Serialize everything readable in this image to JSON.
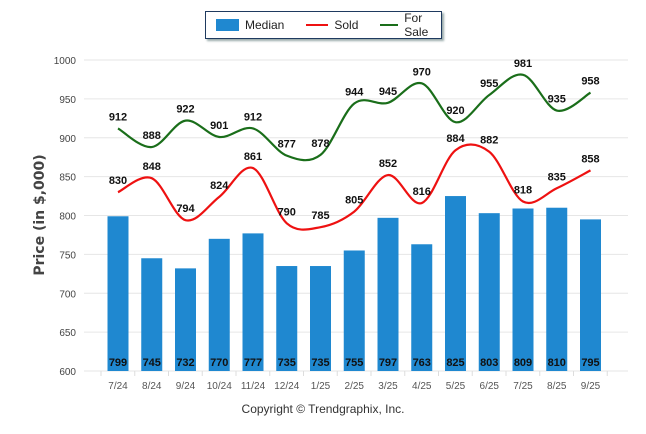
{
  "chart_data": {
    "type": "bar+line",
    "title": "",
    "xlabel": "",
    "ylabel": "Price (in $,000)",
    "ylim": [
      600,
      1000
    ],
    "yticks": [
      600,
      650,
      700,
      750,
      800,
      850,
      900,
      950,
      1000
    ],
    "grid": true,
    "legend_position": "top-center",
    "categories": [
      "7/24",
      "8/24",
      "9/24",
      "10/24",
      "11/24",
      "12/24",
      "1/25",
      "2/25",
      "3/25",
      "4/25",
      "5/25",
      "6/25",
      "7/25",
      "8/25",
      "9/25"
    ],
    "series": [
      {
        "name": "Median",
        "kind": "bar",
        "color": "#1f88d0",
        "values": [
          799,
          745,
          732,
          770,
          777,
          735,
          735,
          755,
          797,
          763,
          825,
          803,
          809,
          810,
          795
        ]
      },
      {
        "name": "Sold",
        "kind": "line",
        "color": "#ee1111",
        "values": [
          830,
          848,
          794,
          824,
          861,
          790,
          785,
          805,
          852,
          816,
          884,
          882,
          818,
          835,
          858
        ]
      },
      {
        "name": "For Sale",
        "kind": "line",
        "color": "#1a6e1a",
        "values": [
          912,
          888,
          922,
          901,
          912,
          877,
          878,
          944,
          945,
          970,
          920,
          955,
          981,
          935,
          958
        ]
      }
    ]
  },
  "legend": {
    "items": [
      {
        "label": "Median",
        "color": "#1f88d0"
      },
      {
        "label": "Sold",
        "color": "#ee1111"
      },
      {
        "label": "For Sale",
        "color": "#1a6e1a"
      }
    ]
  },
  "footer": {
    "copyright": "Copyright © Trendgraphix, Inc."
  }
}
